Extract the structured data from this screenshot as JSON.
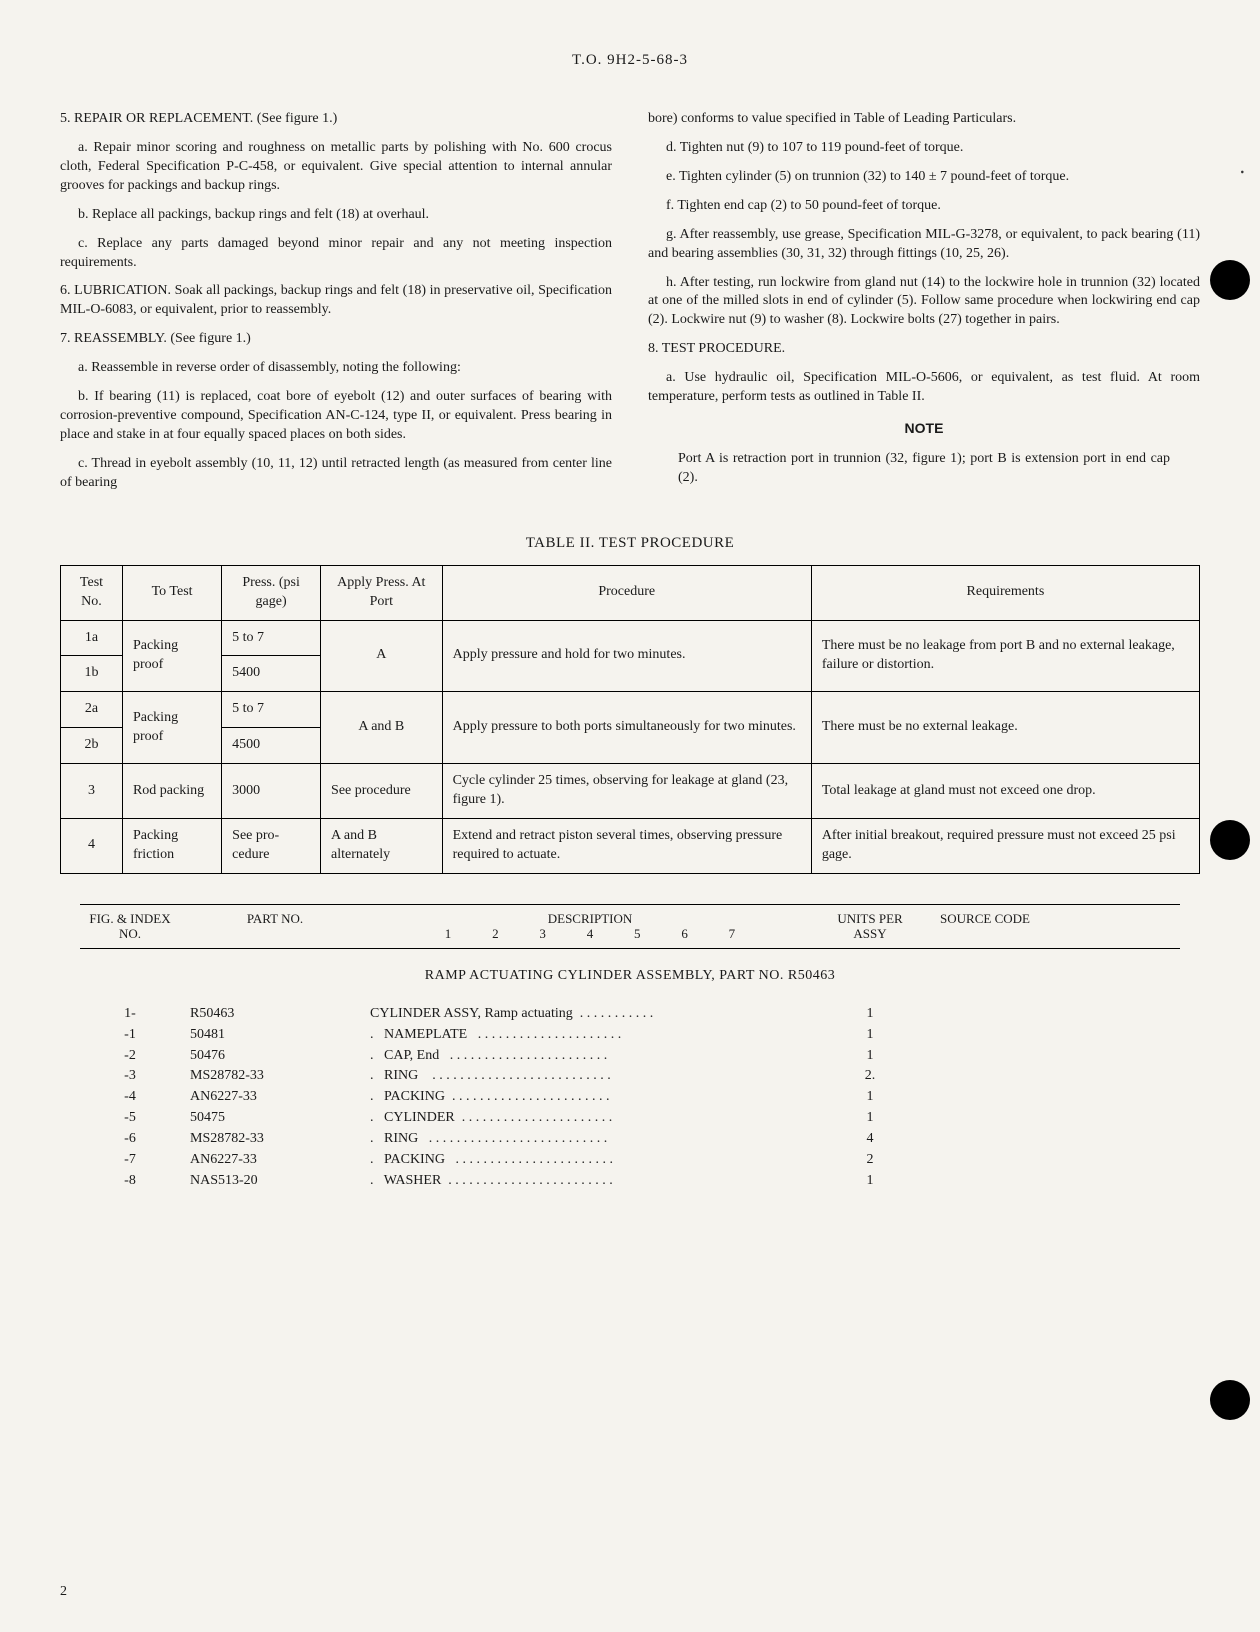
{
  "header": "T.O. 9H2-5-68-3",
  "left": {
    "s5_title": "5.  REPAIR OR REPLACEMENT.  (See figure 1.)",
    "s5_a": "a.  Repair minor scoring and roughness on metallic parts by polishing with No. 600 crocus cloth, Federal Specification P-C-458, or equivalent. Give special attention to internal annular grooves for packings and backup rings.",
    "s5_b": "b.  Replace all packings, backup rings and felt (18) at overhaul.",
    "s5_c": "c.  Replace any parts damaged beyond minor repair and any not meeting inspection requirements.",
    "s6": "6.  LUBRICATION.  Soak all packings, backup rings and felt (18) in preservative oil, Specification MIL-O-6083, or equivalent, prior to reassembly.",
    "s7_title": "7.  REASSEMBLY.  (See figure 1.)",
    "s7_a": "a.  Reassemble in reverse order of disassembly, noting the following:",
    "s7_b": "b.  If bearing (11) is replaced, coat bore of eyebolt (12) and outer surfaces of bearing with corrosion-preventive compound, Specification AN-C-124, type II, or equivalent. Press bearing in place and stake in at four equally spaced places on both sides.",
    "s7_c": "c.  Thread in eyebolt assembly (10, 11, 12) until retracted length (as measured from center line of bearing"
  },
  "right": {
    "cont": "bore) conforms to value specified in Table of Leading Particulars.",
    "d": "d.  Tighten nut (9) to 107 to 119 pound-feet of torque.",
    "e": "e.  Tighten cylinder (5) on trunnion (32) to 140 ± 7 pound-feet of torque.",
    "f": "f.  Tighten end cap (2) to 50 pound-feet of torque.",
    "g": "g.  After reassembly, use grease, Specification MIL-G-3278, or equivalent, to pack bearing (11) and bearing assemblies (30, 31, 32) through fittings (10, 25, 26).",
    "h": "h.  After testing, run lockwire from gland nut (14) to the lockwire hole in trunnion (32) located at one of the milled slots in end of cylinder (5). Follow same procedure when lockwiring end cap (2). Lockwire nut (9) to washer (8). Lockwire bolts (27) together in pairs.",
    "s8_title": "8.  TEST PROCEDURE.",
    "s8_a": "a.  Use hydraulic oil, Specification MIL-O-5606, or equivalent, as test fluid. At room temperature, perform tests as outlined in Table II.",
    "note_head": "NOTE",
    "note_body": "Port A is retraction port in trunnion (32, figure 1); port B is extension port in end cap (2)."
  },
  "table": {
    "title": "TABLE II.   TEST PROCEDURE",
    "headers": [
      "Test No.",
      "To Test",
      "Press. (psi gage)",
      "Apply Press. At Port",
      "Procedure",
      "Requirements"
    ],
    "rows": {
      "r1a_no": "1a",
      "r1b_no": "1b",
      "r1_test": "Packing proof",
      "r1a_press": "5 to 7",
      "r1b_press": "5400",
      "r1_port": "A",
      "r1_proc": "Apply pressure and hold for two minutes.",
      "r1_req": "There must be no leakage from port B and no external leakage, failure or distortion.",
      "r2a_no": "2a",
      "r2b_no": "2b",
      "r2_test": "Packing proof",
      "r2a_press": "5 to 7",
      "r2b_press": "4500",
      "r2_port": "A and B",
      "r2_proc": "Apply pressure to both ports simultaneously for two minutes.",
      "r2_req": "There must be no external leakage.",
      "r3_no": "3",
      "r3_test": "Rod packing",
      "r3_press": "3000",
      "r3_port": "See procedure",
      "r3_proc": "Cycle cylinder 25 times, observing for leakage at gland (23, figure 1).",
      "r3_req": "Total leakage at gland must not exceed one drop.",
      "r4_no": "4",
      "r4_test": "Packing friction",
      "r4_press": "See pro-cedure",
      "r4_port": "A and B alternately",
      "r4_proc": "Extend and retract piston several times, observing pressure required to actuate.",
      "r4_req": "After initial breakout, required pressure must not exceed 25 psi gage."
    }
  },
  "parts": {
    "h_idx": "FIG. & INDEX NO.",
    "h_part": "PART NO.",
    "h_desc": "DESCRIPTION",
    "h_units": "UNITS PER ASSY",
    "h_src": "SOURCE CODE",
    "nums": [
      "1",
      "2",
      "3",
      "4",
      "5",
      "6",
      "7"
    ],
    "assy_title": "RAMP ACTUATING CYLINDER ASSEMBLY, PART NO.  R50463",
    "rows": [
      {
        "idx": "1-",
        "part": "R50463",
        "desc": "CYLINDER ASSY, Ramp actuating  . . . . . . . . . . .",
        "qty": "1"
      },
      {
        "idx": "-1",
        "part": "50481",
        "desc": ".   NAMEPLATE   . . . . . . . . . . . . . . . . . . . . .",
        "qty": "1"
      },
      {
        "idx": "-2",
        "part": "50476",
        "desc": ".   CAP, End   . . . . . . . . . . . . . . . . . . . . . . .",
        "qty": "1"
      },
      {
        "idx": "-3",
        "part": "MS28782-33",
        "desc": ".   RING    . . . . . . . . . . . . . . . . . . . . . . . . . .",
        "qty": "2."
      },
      {
        "idx": "-4",
        "part": "AN6227-33",
        "desc": ".   PACKING  . . . . . . . . . . . . . . . . . . . . . . .",
        "qty": "1"
      },
      {
        "idx": "-5",
        "part": "50475",
        "desc": ".   CYLINDER  . . . . . . . . . . . . . . . . . . . . . .",
        "qty": "1"
      },
      {
        "idx": "-6",
        "part": "MS28782-33",
        "desc": ".   RING   . . . . . . . . . . . . . . . . . . . . . . . . . .",
        "qty": "4"
      },
      {
        "idx": "-7",
        "part": "AN6227-33",
        "desc": ".   PACKING   . . . . . . . . . . . . . . . . . . . . . . .",
        "qty": "2"
      },
      {
        "idx": "-8",
        "part": "NAS513-20",
        "desc": ".   WASHER  . . . . . . . . . . . . . . . . . . . . . . . .",
        "qty": "1"
      }
    ]
  },
  "page_num": "2"
}
